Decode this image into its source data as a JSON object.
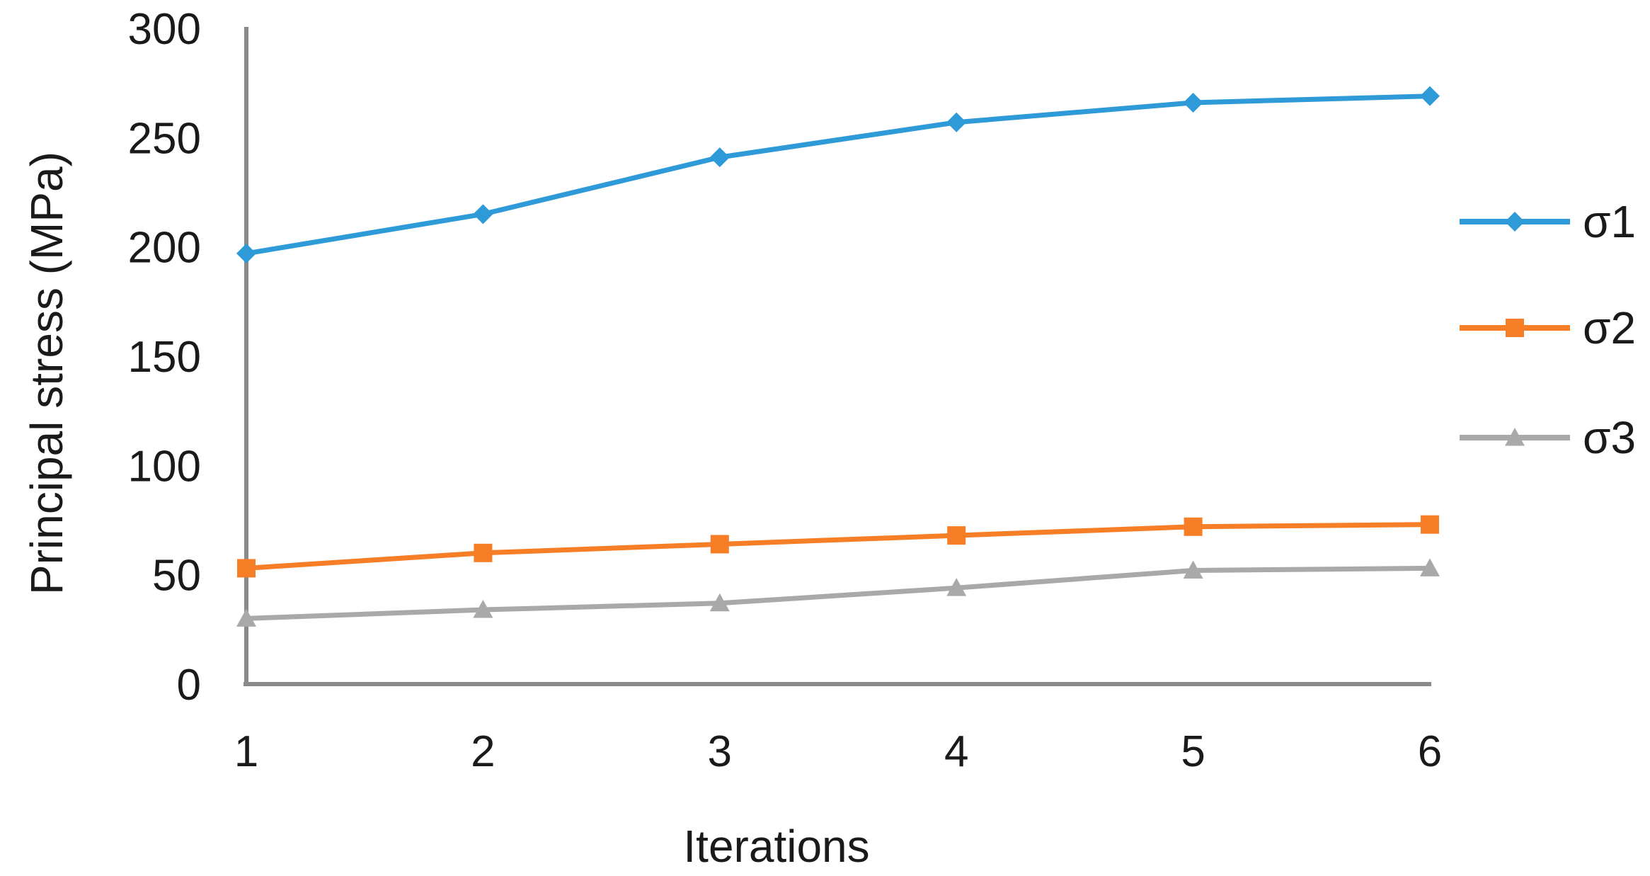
{
  "chart_data": {
    "type": "line",
    "title": "",
    "xlabel": "Iterations",
    "ylabel": "Principal stress (MPa)",
    "x": [
      1,
      2,
      3,
      4,
      5,
      6
    ],
    "x_ticks": [
      "1",
      "2",
      "3",
      "4",
      "5",
      "6"
    ],
    "y_ticks": [
      0,
      50,
      100,
      150,
      200,
      250,
      300
    ],
    "xlim": [
      1,
      6
    ],
    "ylim": [
      0,
      300
    ],
    "grid": false,
    "legend_position": "right",
    "series": [
      {
        "name": "σ1",
        "marker": "diamond",
        "color": "#2E9AD7",
        "values": [
          197,
          215,
          241,
          257,
          266,
          269
        ]
      },
      {
        "name": "σ2",
        "marker": "square",
        "color": "#F57E27",
        "values": [
          53,
          60,
          64,
          68,
          72,
          73
        ]
      },
      {
        "name": "σ3",
        "marker": "triangle",
        "color": "#A9A9A9",
        "values": [
          30,
          34,
          37,
          44,
          52,
          53
        ]
      }
    ],
    "axis_color": "#8A8A8A",
    "text_color": "#1A1A1A",
    "background_color": "#FFFFFF"
  }
}
